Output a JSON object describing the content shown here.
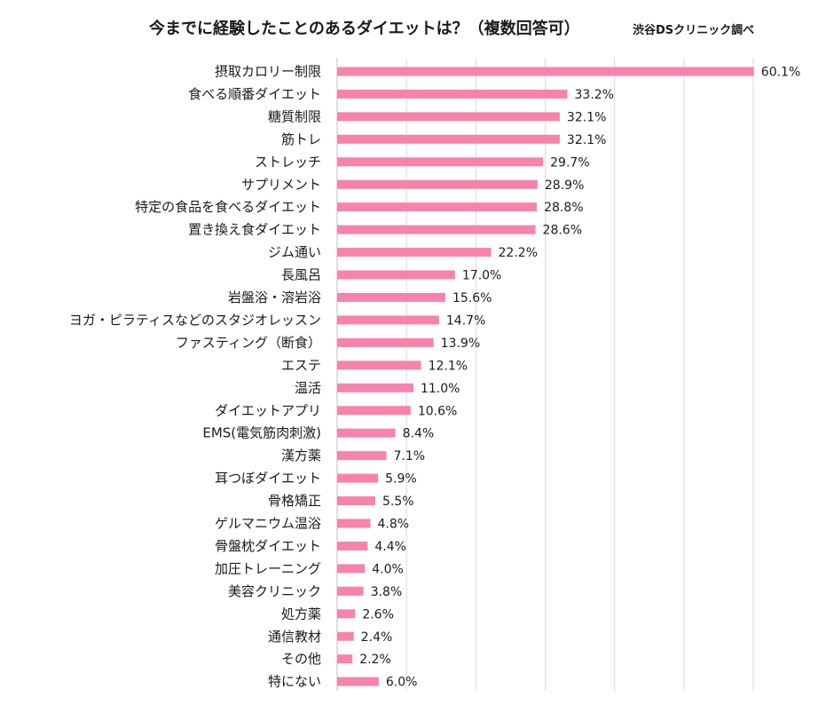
{
  "colors": {
    "bar": "#f783ac",
    "grid": "#d9d9d9",
    "text": "#1a1a1a"
  },
  "chart_data": {
    "type": "bar",
    "orientation": "horizontal",
    "title": "今までに経験したことのあるダイエットは？（複数回答可）",
    "source": "渋谷DSクリニック調べ",
    "xlabel": "",
    "ylabel": "",
    "xlim": [
      0,
      60
    ],
    "grid": true,
    "value_suffix": "%",
    "categories": [
      "摂取カロリー制限",
      "食べる順番ダイエット",
      "糖質制限",
      "筋トレ",
      "ストレッチ",
      "サプリメント",
      "特定の食品を食べるダイエット",
      "置き換え食ダイエット",
      "ジム通い",
      "長風呂",
      "岩盤浴・溶岩浴",
      "ヨガ・ピラティスなどのスタジオレッスン",
      "ファスティング（断食）",
      "エステ",
      "温活",
      "ダイエットアプリ",
      "EMS(電気筋肉刺激)",
      "漢方薬",
      "耳つぼダイエット",
      "骨格矯正",
      "ゲルマニウム温浴",
      "骨盤枕ダイエット",
      "加圧トレーニング",
      "美容クリニック",
      "処方薬",
      "通信教材",
      "その他",
      "特にない"
    ],
    "values": [
      60.1,
      33.2,
      32.1,
      32.1,
      29.7,
      28.9,
      28.8,
      28.6,
      22.2,
      17.0,
      15.6,
      14.7,
      13.9,
      12.1,
      11.0,
      10.6,
      8.4,
      7.1,
      5.9,
      5.5,
      4.8,
      4.4,
      4.0,
      3.8,
      2.6,
      2.4,
      2.2,
      6.0
    ]
  }
}
